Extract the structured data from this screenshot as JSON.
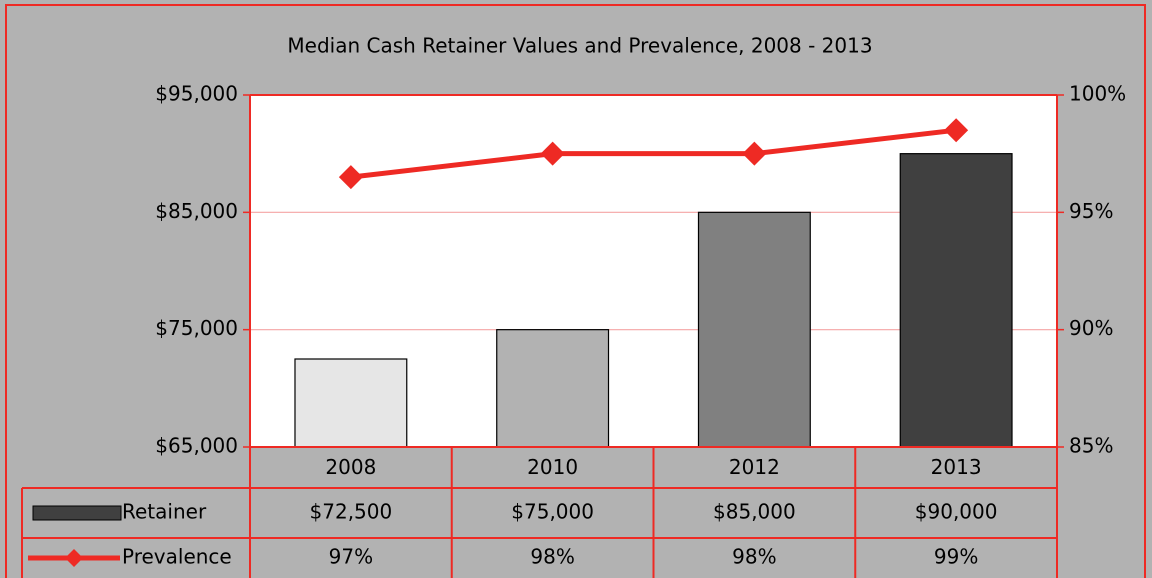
{
  "chart_data": {
    "type": "bar",
    "title": "Median Cash Retainer Values and Prevalence, 2008 - 2013",
    "categories": [
      "2008",
      "2010",
      "2012",
      "2013"
    ],
    "series": [
      {
        "name": "Retainer",
        "color": "#404040",
        "colors": [
          "#e6e6e6",
          "#b2b2b2",
          "#808080",
          "#404040"
        ],
        "values": [
          72500,
          75000,
          85000,
          90000
        ],
        "value_labels": [
          "$72,500",
          "$75,000",
          "$85,000",
          "$90,000"
        ]
      },
      {
        "name": "Prevalence",
        "type": "line",
        "axis": "y2",
        "color": "#ee2a24",
        "values": [
          96.5,
          97.5,
          97.5,
          98.5
        ],
        "value_labels": [
          "97%",
          "98%",
          "98%",
          "99%"
        ]
      }
    ],
    "ylim": [
      65000,
      95000
    ],
    "yticks": [
      {
        "value": 65000,
        "label": "$65,000"
      },
      {
        "value": 75000,
        "label": "$75,000"
      },
      {
        "value": 85000,
        "label": "$85,000"
      },
      {
        "value": 95000,
        "label": "$95,000"
      }
    ],
    "y2lim": [
      85,
      100
    ],
    "y2ticks": [
      {
        "value": 85,
        "label": "85%"
      },
      {
        "value": 90,
        "label": "90%"
      },
      {
        "value": 95,
        "label": "95%"
      },
      {
        "value": 100,
        "label": "100%"
      }
    ],
    "grid": true,
    "data_table": true
  }
}
